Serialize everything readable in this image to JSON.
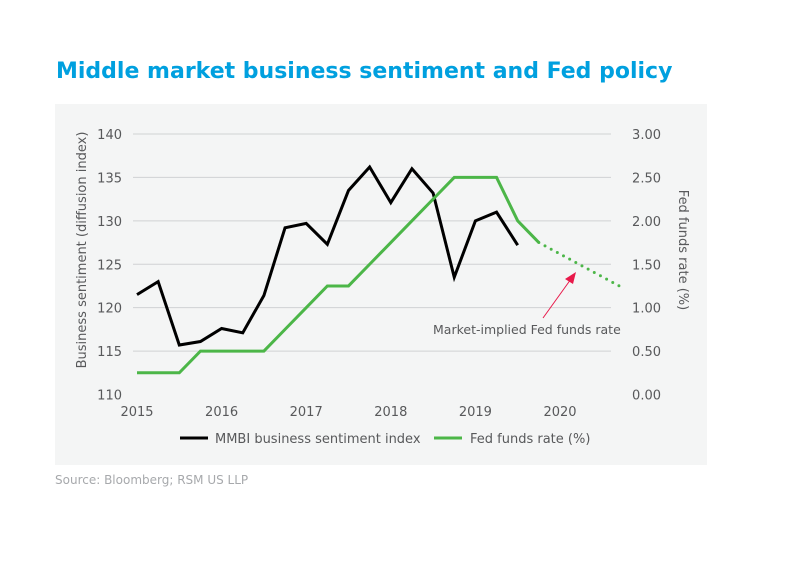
{
  "chart_data": {
    "type": "line",
    "title": "Middle market business sentiment and Fed policy",
    "source": "Source: Bloomberg; RSM US LLP",
    "xlim": [
      2015,
      2020.9
    ],
    "x_ticks": [
      "2015",
      "2016",
      "2017",
      "2018",
      "2019",
      "2020"
    ],
    "y_left": {
      "label": "Business sentiment (diffusion index)",
      "lim": [
        110,
        140
      ],
      "ticks": [
        "110",
        "115",
        "120",
        "125",
        "130",
        "135",
        "140"
      ]
    },
    "y_right": {
      "label": "Fed funds rate (%)",
      "lim": [
        0,
        3
      ],
      "ticks": [
        "0.00",
        "0.50",
        "1.00",
        "1.50",
        "2.00",
        "2.50",
        "3.00"
      ]
    },
    "grid": true,
    "legend_placement": "bottom",
    "series": [
      {
        "name": "MMBI business sentiment index",
        "axis": "left",
        "color": "#000000",
        "x": [
          2015,
          2015.25,
          2015.5,
          2015.75,
          2016,
          2016.25,
          2016.5,
          2016.75,
          2017,
          2017.25,
          2017.5,
          2017.75,
          2018,
          2018.25,
          2018.5,
          2018.75,
          2019,
          2019.25,
          2019.5
        ],
        "y": [
          121.5,
          123.0,
          115.7,
          116.1,
          117.6,
          117.1,
          121.4,
          129.2,
          129.7,
          127.3,
          133.5,
          136.2,
          132.1,
          136.0,
          133.2,
          123.5,
          130.0,
          131.0,
          127.2
        ]
      },
      {
        "name": "Fed funds rate (%)",
        "axis": "right",
        "color": "#4CB648",
        "x": [
          2015,
          2015.25,
          2015.5,
          2015.75,
          2016,
          2016.25,
          2016.5,
          2016.75,
          2017,
          2017.25,
          2017.5,
          2017.75,
          2018,
          2018.25,
          2018.5,
          2018.75,
          2019,
          2019.25,
          2019.5,
          2019.75
        ],
        "y": [
          0.25,
          0.25,
          0.25,
          0.5,
          0.5,
          0.5,
          0.5,
          0.75,
          1.0,
          1.25,
          1.25,
          1.5,
          1.75,
          2.0,
          2.25,
          2.5,
          2.5,
          2.5,
          2.0,
          1.75
        ]
      },
      {
        "axis": "right",
        "color": "#4CB648",
        "style": "dotted",
        "x": [
          2019.75,
          2020.7
        ],
        "y": [
          1.75,
          1.25
        ]
      }
    ],
    "annotation": {
      "text": "Market-implied Fed funds rate",
      "color": "#E8194A"
    }
  },
  "colors": {
    "title": "#00A0DF",
    "panel": "#F4F5F5",
    "grid": "#D0D2D3",
    "text": "#58595B"
  }
}
